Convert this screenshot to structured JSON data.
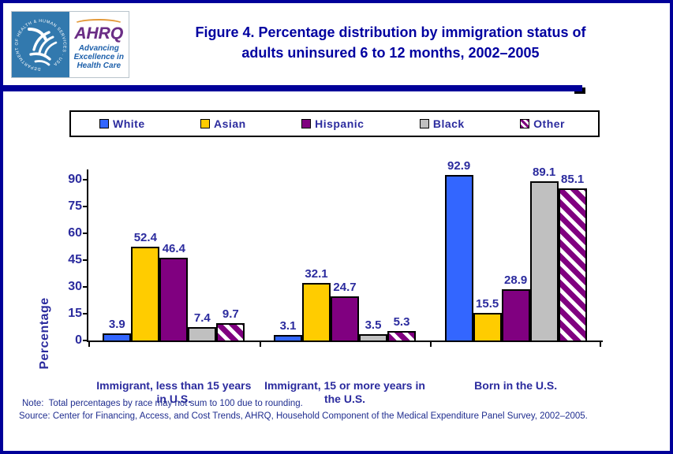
{
  "header": {
    "title_line1": "Figure 4. Percentage distribution by immigration status of",
    "title_line2": "adults uninsured 6 to 12 months, 2002–2005",
    "title_color": "#0000A0"
  },
  "logo": {
    "hhs_ring_text": "DEPARTMENT OF HEALTH & HUMAN SERVICES · USA",
    "ahrq_acronym": "AHRQ",
    "tagline_line1": "Advancing",
    "tagline_line2": "Excellence in",
    "tagline_line3": "Health Care"
  },
  "legend": {
    "items": [
      {
        "label": "White",
        "color": "#3366FF",
        "hatch": false
      },
      {
        "label": "Asian",
        "color": "#FFCC00",
        "hatch": false
      },
      {
        "label": "Hispanic",
        "color": "#800080",
        "hatch": false
      },
      {
        "label": "Black",
        "color": "#C0C0C0",
        "hatch": false
      },
      {
        "label": "Other",
        "color": "#800080",
        "hatch": true
      }
    ]
  },
  "chart_data": {
    "type": "bar",
    "title": "Figure 4. Percentage distribution by immigration status of adults uninsured 6 to 12 months, 2002–2005",
    "categories": [
      "Immigrant, less than 15 years in U.S.",
      "Immigrant, 15 or more years in the U.S.",
      "Born in the U.S."
    ],
    "series": [
      {
        "name": "White",
        "color": "#3366FF",
        "hatch": false,
        "values": [
          3.9,
          3.1,
          92.9
        ]
      },
      {
        "name": "Asian",
        "color": "#FFCC00",
        "hatch": false,
        "values": [
          52.4,
          32.1,
          15.5
        ]
      },
      {
        "name": "Hispanic",
        "color": "#800080",
        "hatch": false,
        "values": [
          46.4,
          24.7,
          28.9
        ]
      },
      {
        "name": "Black",
        "color": "#C0C0C0",
        "hatch": false,
        "values": [
          7.4,
          3.5,
          89.1
        ]
      },
      {
        "name": "Other",
        "color": "#800080",
        "hatch": true,
        "values": [
          9.7,
          5.3,
          85.1
        ]
      }
    ],
    "xlabel": "",
    "ylabel": "Percentage",
    "yticks": [
      0,
      15,
      30,
      45,
      60,
      75,
      90
    ],
    "ylim": [
      0,
      95
    ],
    "grid": false,
    "legend_position": "top",
    "bar_border_color": "#000000",
    "label_color": "#2B2B9E"
  },
  "footer": {
    "note": "Note:  Total percentages by race may not sum to 100 due to rounding.",
    "source": "Source: Center for Financing, Access, and Cost Trends, AHRQ, Household Component of the Medical Expenditure Panel Survey, 2002–2005."
  }
}
